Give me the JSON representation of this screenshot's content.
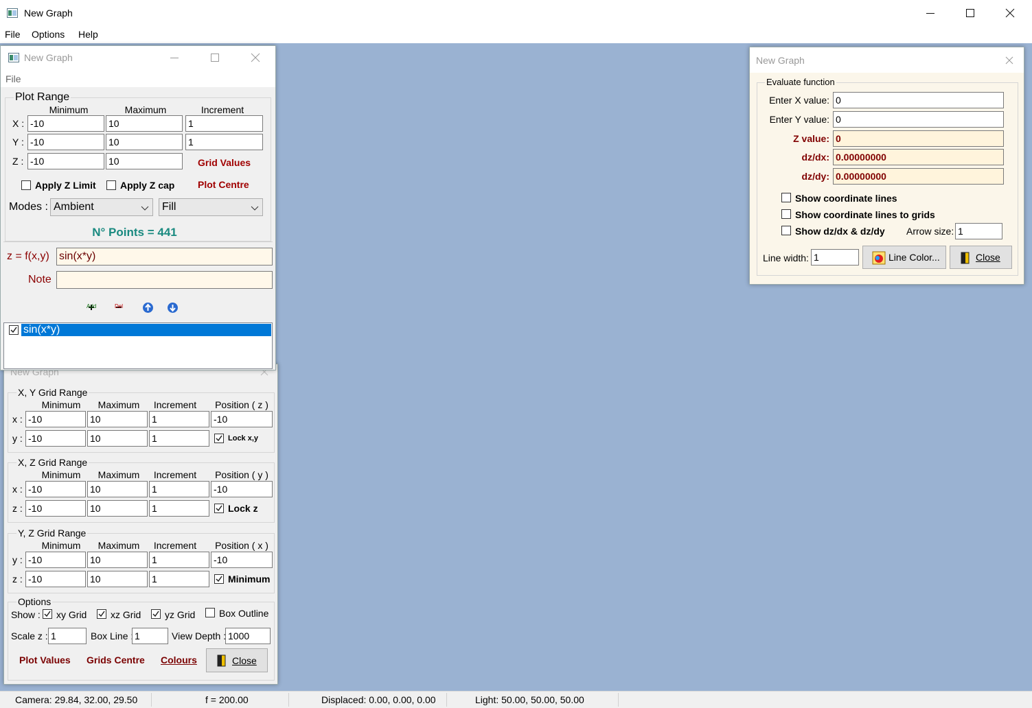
{
  "main_window": {
    "title": "New Graph",
    "menu": [
      "File",
      "Options",
      "Help"
    ]
  },
  "status_bar": [
    "Camera: 29.84, 32.00, 29.50",
    "f = 200.00",
    "Displaced: 0.00, 0.00, 0.00",
    "Light: 50.00, 50.00, 50.00"
  ],
  "plot_window": {
    "title": "New Graph",
    "menu": [
      "File"
    ],
    "plot_range": {
      "title": "Plot Range",
      "headers": [
        "Minimum",
        "Maximum",
        "Increment"
      ],
      "rows": [
        {
          "label": "X :",
          "values": [
            "-10",
            "10",
            "1"
          ]
        },
        {
          "label": "Y :",
          "values": [
            "-10",
            "10",
            "1"
          ]
        },
        {
          "label": "Z :",
          "values": [
            "-10",
            "10"
          ]
        }
      ]
    },
    "grid_values": "Grid Values",
    "checks": [
      {
        "label": "Apply Z Limit",
        "checked": false
      },
      {
        "label": "Apply Z cap",
        "checked": false
      }
    ],
    "plot_centre": "Plot Centre",
    "modes_label": "Modes :",
    "modes": [
      "Ambient",
      "Fill"
    ],
    "points": "N° Points = 441",
    "function_label": "z = f(x,y)",
    "function": "sin(x*y)",
    "note_label": "Note",
    "toolbar": [
      "Add",
      "Del"
    ],
    "functions": [
      {
        "label": "sin(x*y)",
        "checked": true
      }
    ]
  },
  "grid_window": {
    "title": "New Graph",
    "groups": [
      {
        "title": "X, Y Grid Range",
        "headers": [
          "Minimum",
          "Maximum",
          "Increment",
          "Position ( z )"
        ],
        "rows": [
          {
            "label": "x :",
            "values": [
              "-10",
              "10",
              "1",
              "-10"
            ]
          },
          {
            "label": "y :",
            "values": [
              "-10",
              "10",
              "1"
            ],
            "check": {
              "label": "Lock x,y",
              "checked": true
            }
          }
        ]
      },
      {
        "title": "X, Z Grid Range",
        "headers": [
          "Minimum",
          "Maximum",
          "Increment",
          "Position ( y )"
        ],
        "rows": [
          {
            "label": "x :",
            "values": [
              "-10",
              "10",
              "1",
              "-10"
            ]
          },
          {
            "label": "z :",
            "values": [
              "-10",
              "10",
              "1"
            ],
            "check": {
              "label": "Lock z",
              "checked": true
            }
          }
        ]
      },
      {
        "title": "Y, Z Grid Range",
        "headers": [
          "Minimum",
          "Maximum",
          "Increment",
          "Position ( x )"
        ],
        "rows": [
          {
            "label": "y :",
            "values": [
              "-10",
              "10",
              "1",
              "-10"
            ]
          },
          {
            "label": "z :",
            "values": [
              "-10",
              "10",
              "1"
            ],
            "check": {
              "label": "Minimum",
              "checked": true
            }
          }
        ]
      }
    ],
    "options": {
      "title": "Options",
      "show_label": "Show :",
      "show": [
        {
          "label": "xy Grid",
          "checked": true
        },
        {
          "label": "xz Grid",
          "checked": true
        },
        {
          "label": "yz Grid",
          "checked": true
        },
        {
          "label": "Box Outline",
          "checked": false
        }
      ],
      "fields": [
        {
          "label": "Scale z :",
          "value": "1"
        },
        {
          "label": "Box Line :",
          "value": "1"
        },
        {
          "label": "View Depth :",
          "value": "1000"
        }
      ]
    },
    "links": [
      "Plot Values",
      "Grids Centre",
      "Colours"
    ],
    "close": "Close"
  },
  "evaluate_window": {
    "title": "New Graph",
    "group": "Evaluate function",
    "fields": [
      {
        "label": "Enter X value:",
        "value": "0"
      },
      {
        "label": "Enter Y value:",
        "value": "0"
      },
      {
        "label": "Z value:",
        "value": "0"
      },
      {
        "label": "dz/dx:",
        "value": "0.00000000"
      },
      {
        "label": "dz/dy:",
        "value": "0.00000000"
      }
    ],
    "checks": [
      {
        "label": "Show coordinate lines",
        "checked": false
      },
      {
        "label": "Show coordinate lines to grids",
        "checked": false
      },
      {
        "label": "Show dz/dx & dz/dy",
        "checked": false
      }
    ],
    "arrow_size_label": "Arrow size:",
    "arrow_size": "1",
    "line_width_label": "Line width:",
    "line_width": "1",
    "line_color": "Line Color...",
    "close": "Close"
  }
}
